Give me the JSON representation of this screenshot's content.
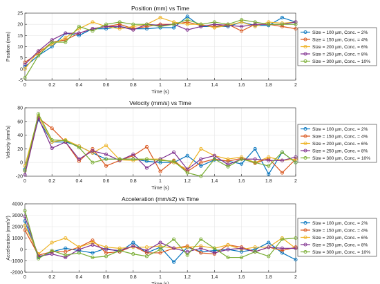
{
  "chart_data": [
    {
      "type": "line",
      "title": "Position (mm) vs Time",
      "xlabel": "Time (s)",
      "ylabel": "Position (mm)",
      "xlim": [
        0,
        2
      ],
      "ylim": [
        -5,
        25
      ],
      "xticks": [
        0,
        0.2,
        0.4,
        0.6,
        0.8,
        1,
        1.2,
        1.4,
        1.6,
        1.8,
        2
      ],
      "yticks": [
        -5,
        0,
        5,
        10,
        15,
        20,
        25
      ],
      "grid": true,
      "legend": "right",
      "x": [
        0,
        0.1,
        0.2,
        0.3,
        0.4,
        0.5,
        0.6,
        0.7,
        0.8,
        0.9,
        1.0,
        1.1,
        1.2,
        1.3,
        1.4,
        1.5,
        1.6,
        1.7,
        1.8,
        1.9,
        2.0
      ],
      "series": [
        {
          "name": "Size = 100 µm, Conc. = 2%",
          "color": "#0072BD",
          "values": [
            1,
            6,
            10,
            16,
            15,
            18,
            18,
            19,
            18,
            18,
            18.5,
            18.5,
            23.5,
            19,
            19,
            19,
            21,
            19.5,
            19.5,
            23,
            21
          ]
        },
        {
          "name": "Size = 150 µm, Conc. = 4%",
          "color": "#D95319",
          "values": [
            3,
            7,
            12,
            13,
            16,
            18,
            19,
            20,
            18,
            19,
            20,
            20,
            21,
            19.5,
            19,
            20,
            17,
            20,
            20,
            19,
            18
          ]
        },
        {
          "name": "Size = 200 µm, Conc. = 6%",
          "color": "#EDB120",
          "values": [
            0,
            8,
            11,
            14,
            18,
            21,
            19,
            18,
            19,
            20,
            23,
            21,
            20,
            20,
            18.5,
            19.5,
            21,
            19,
            21,
            20.5,
            21
          ]
        },
        {
          "name": "Size = 250 µm, Conc. = 8%",
          "color": "#7E2F8E",
          "values": [
            2,
            8,
            13,
            16,
            16,
            18,
            19,
            19,
            17.5,
            20,
            19.5,
            20,
            17.5,
            19,
            20,
            19.5,
            19,
            20,
            20,
            20,
            21
          ]
        },
        {
          "name": "Size = 300 µm, Conc. = 10%",
          "color": "#77AC30",
          "values": [
            -4,
            6,
            12,
            12,
            19,
            17,
            20,
            21,
            20,
            20,
            19,
            20,
            22,
            20,
            21,
            20,
            22,
            21,
            20,
            20,
            20
          ]
        }
      ]
    },
    {
      "type": "line",
      "title": "Velocity (mm/s) vs Time",
      "xlabel": "Time (s)",
      "ylabel": "Velocity (mm/s)",
      "xlim": [
        0,
        2
      ],
      "ylim": [
        -20,
        80
      ],
      "xticks": [
        0,
        0.2,
        0.4,
        0.6,
        0.8,
        1,
        1.2,
        1.4,
        1.6,
        1.8,
        2
      ],
      "yticks": [
        -20,
        0,
        20,
        40,
        60,
        80
      ],
      "grid": true,
      "legend": "right",
      "x": [
        0,
        0.1,
        0.2,
        0.3,
        0.4,
        0.5,
        0.6,
        0.7,
        0.8,
        0.9,
        1.0,
        1.1,
        1.2,
        1.3,
        1.4,
        1.5,
        1.6,
        1.7,
        1.8,
        1.9,
        2.0
      ],
      "series": [
        {
          "name": "Size = 100 µm, Conc. = 2%",
          "color": "#0072BD",
          "values": [
            -10,
            63,
            30,
            30,
            24,
            14,
            5,
            5,
            5,
            2,
            0,
            0,
            10,
            -5,
            4,
            2,
            -2,
            20,
            -17,
            15,
            0
          ]
        },
        {
          "name": "Size = 150 µm, Conc. = 4%",
          "color": "#D95319",
          "values": [
            -12,
            65,
            50,
            30,
            2,
            20,
            -5,
            3,
            10,
            23,
            -13,
            3,
            -13,
            0,
            5,
            2,
            6,
            -1,
            6,
            -15,
            5
          ]
        },
        {
          "name": "Size = 200 µm, Conc. = 6%",
          "color": "#EDB120",
          "values": [
            -5,
            68,
            30,
            33,
            24,
            14,
            25,
            4,
            3,
            5,
            5,
            0,
            -10,
            20,
            10,
            5,
            8,
            0,
            8,
            3,
            5
          ]
        },
        {
          "name": "Size = 250 µm, Conc. = 8%",
          "color": "#7E2F8E",
          "values": [
            -18,
            65,
            21,
            30,
            5,
            17,
            12,
            3,
            12,
            -8,
            5,
            15,
            -10,
            5,
            10,
            -3,
            5,
            5,
            3,
            3,
            8
          ]
        },
        {
          "name": "Size = 300 µm, Conc. = 10%",
          "color": "#77AC30",
          "values": [
            -12,
            71,
            33,
            32,
            22,
            0,
            5,
            5,
            5,
            5,
            3,
            2,
            -15,
            -20,
            5,
            -6,
            5,
            0,
            -5,
            15,
            0
          ]
        }
      ]
    },
    {
      "type": "line",
      "title": "Acceleration (mm/s2) vs Time",
      "xlabel": "Time (s)",
      "ylabel": "Acceleration (mm/s²)",
      "xlim": [
        0,
        2
      ],
      "ylim": [
        -2000,
        4000
      ],
      "xticks": [
        0,
        0.2,
        0.4,
        0.6,
        0.8,
        1,
        1.2,
        1.4,
        1.6,
        1.8,
        2
      ],
      "yticks": [
        -2000,
        -1000,
        0,
        1000,
        2000,
        3000,
        4000
      ],
      "grid": true,
      "legend": "right",
      "x": [
        0,
        0.1,
        0.2,
        0.3,
        0.4,
        0.5,
        0.6,
        0.7,
        0.8,
        0.9,
        1.0,
        1.1,
        1.2,
        1.3,
        1.4,
        1.5,
        1.6,
        1.7,
        1.8,
        1.9,
        2.0
      ],
      "series": [
        {
          "name": "Size = 100 µm, Conc. = 2%",
          "color": "#0072BD",
          "values": [
            2500,
            -700,
            -200,
            100,
            -100,
            -300,
            100,
            -200,
            600,
            -300,
            200,
            -1100,
            200,
            -200,
            -100,
            0,
            -200,
            0,
            600,
            -300,
            -900
          ]
        },
        {
          "name": "Size = 150 µm, Conc. = 4%",
          "color": "#D95319",
          "values": [
            1700,
            -500,
            -200,
            -200,
            200,
            800,
            -300,
            -200,
            300,
            -300,
            -300,
            100,
            300,
            -300,
            -400,
            400,
            200,
            -200,
            200,
            -100,
            200
          ]
        },
        {
          "name": "Size = 200 µm, Conc. = 6%",
          "color": "#EDB120",
          "values": [
            2100,
            -400,
            600,
            1000,
            200,
            600,
            200,
            100,
            200,
            200,
            300,
            100,
            200,
            300,
            100,
            400,
            0,
            200,
            200,
            1000,
            100
          ]
        },
        {
          "name": "Size = 250 µm, Conc. = 8%",
          "color": "#7E2F8E",
          "values": [
            2900,
            -600,
            -400,
            -700,
            0,
            400,
            0,
            -100,
            300,
            -100,
            600,
            100,
            -200,
            100,
            -300,
            0,
            100,
            -200,
            200,
            100,
            100
          ]
        },
        {
          "name": "Size = 300 µm, Conc. = 10%",
          "color": "#77AC30",
          "values": [
            3400,
            -800,
            -100,
            -500,
            -300,
            -700,
            -600,
            -100,
            -400,
            -600,
            0,
            900,
            -500,
            900,
            100,
            -700,
            -700,
            -200,
            -600,
            900,
            1000
          ]
        }
      ]
    }
  ]
}
